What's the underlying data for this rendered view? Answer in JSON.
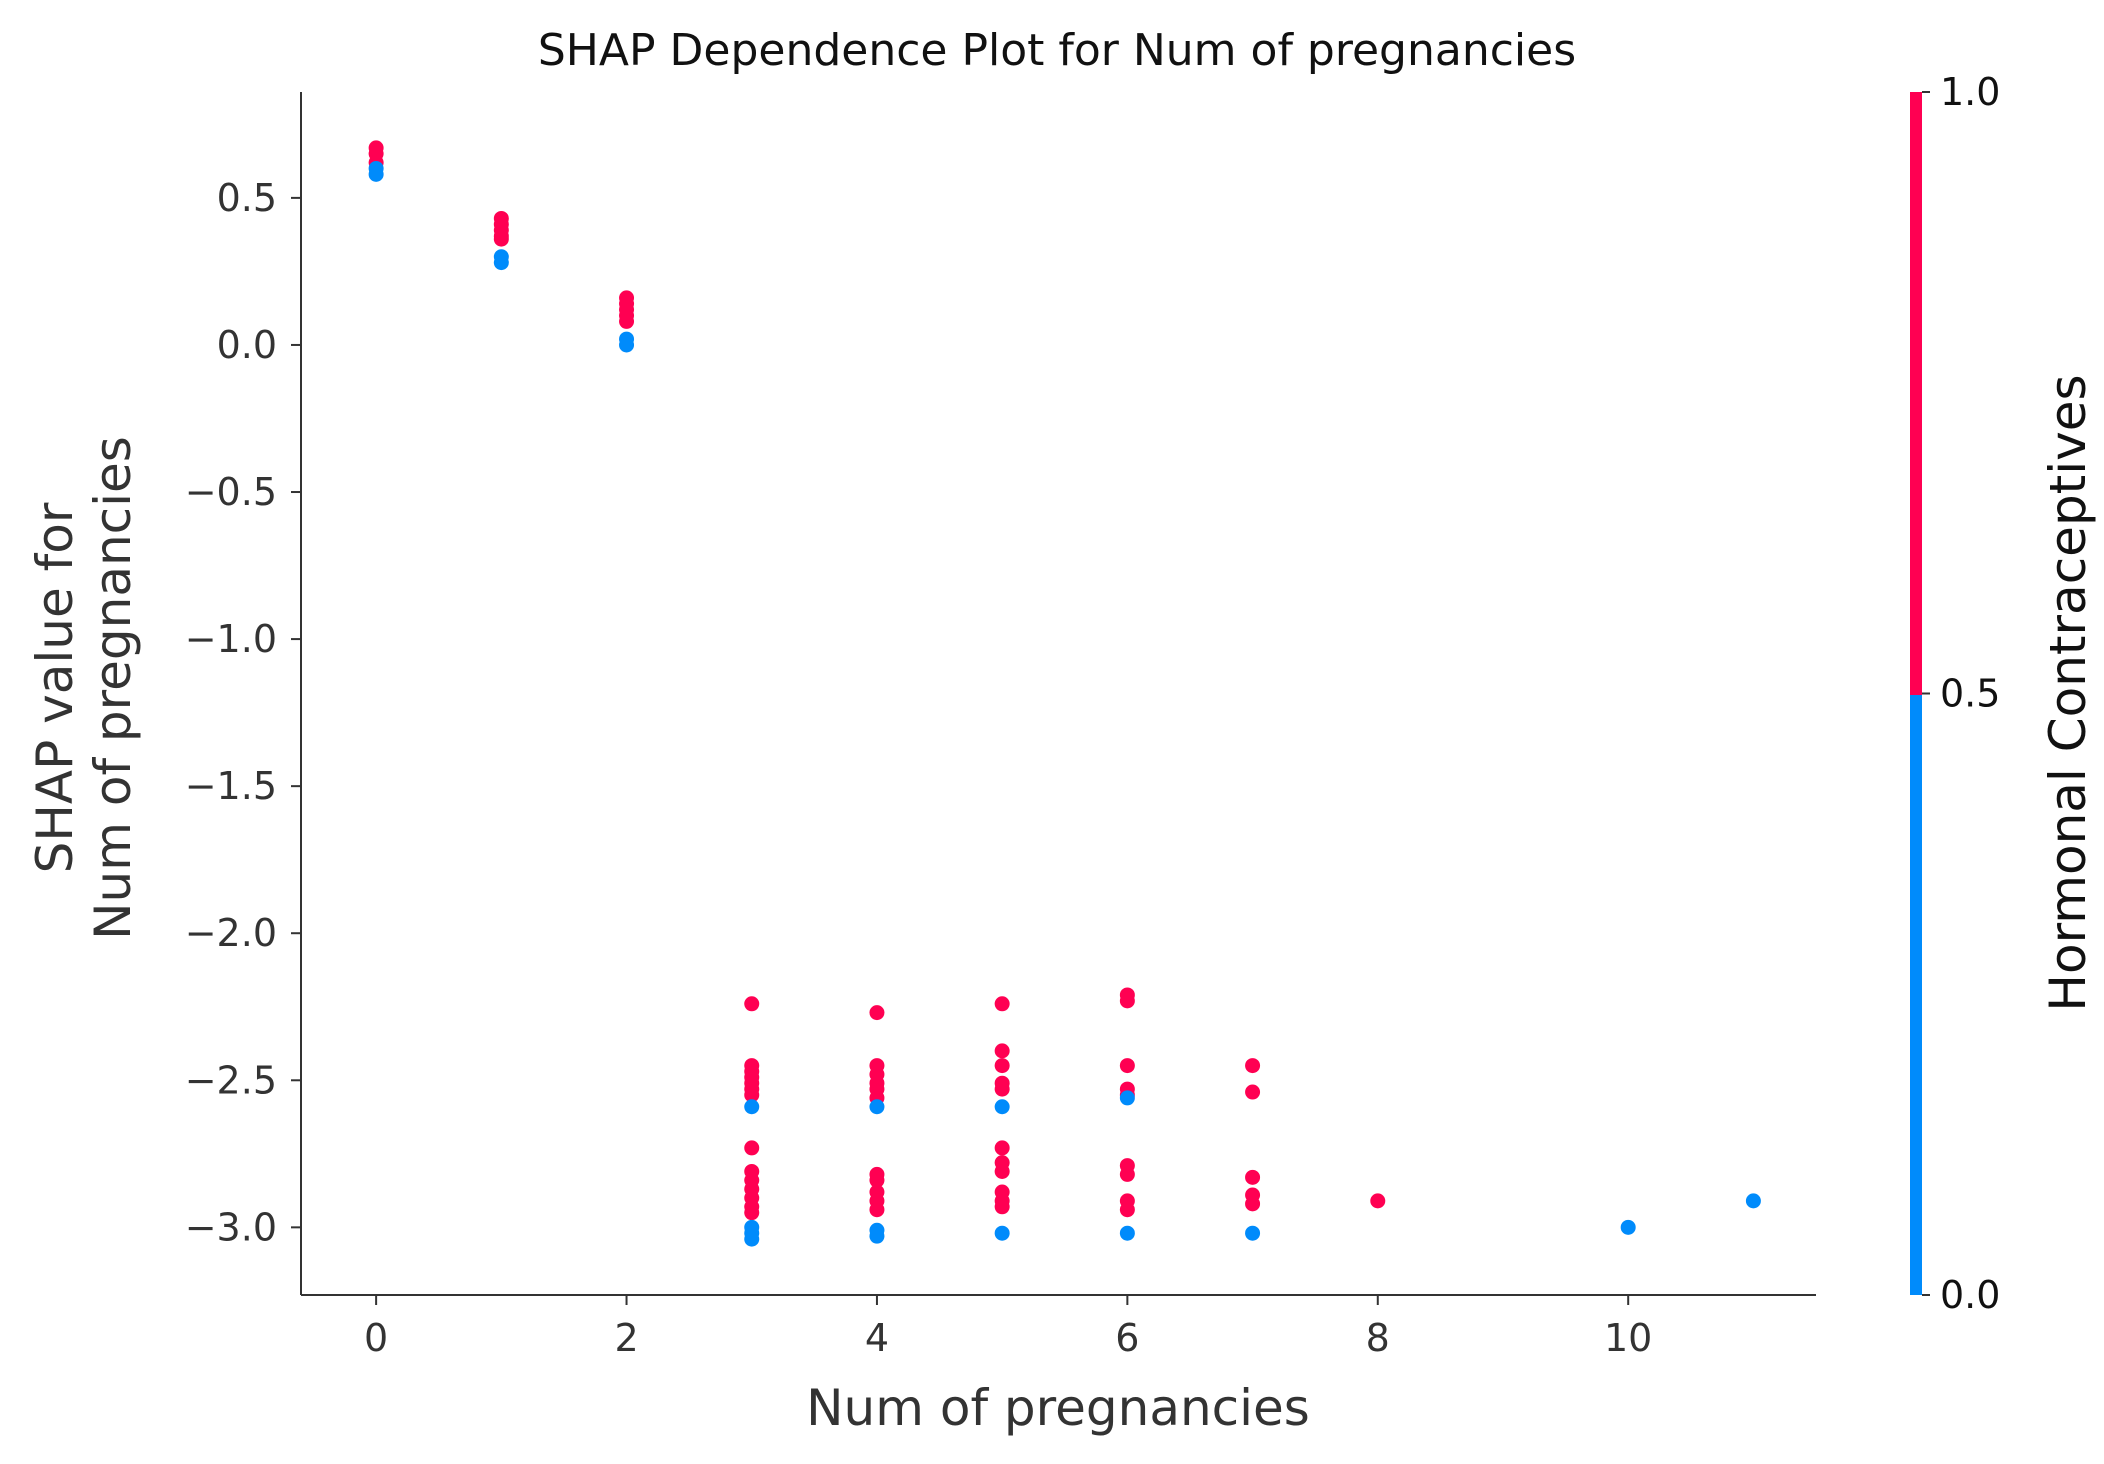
{
  "chart_data": {
    "type": "scatter",
    "title": "SHAP Dependence Plot for Num of pregnancies",
    "xlabel": "Num of pregnancies",
    "ylabel_lines": [
      "SHAP value for",
      "Num of pregnancies"
    ],
    "xlim": [
      -0.6,
      11.5
    ],
    "ylim": [
      -3.23,
      0.86
    ],
    "xticks": [
      0,
      2,
      4,
      6,
      8,
      10
    ],
    "xtick_labels": [
      "0",
      "2",
      "4",
      "6",
      "8",
      "10"
    ],
    "yticks": [
      0.5,
      0.0,
      -0.5,
      -1.0,
      -1.5,
      -2.0,
      -2.5,
      -3.0
    ],
    "ytick_labels": [
      "0.5",
      "0.0",
      "−0.5",
      "−1.0",
      "−1.5",
      "−2.0",
      "−2.5",
      "−3.0"
    ],
    "grid": false,
    "colorbar": {
      "label": "Hormonal Contraceptives",
      "range": [
        0,
        1
      ],
      "ticks": [
        0.0,
        0.5,
        1.0
      ],
      "tick_labels": [
        "0.0",
        "0.5",
        "1.0"
      ],
      "low_color": "#008bfb",
      "high_color": "#ff0052"
    },
    "series": [
      {
        "color_value": 1,
        "color": "#ff0052",
        "points": [
          [
            0,
            0.67
          ],
          [
            0,
            0.65
          ],
          [
            0,
            0.62
          ],
          [
            1,
            0.43
          ],
          [
            1,
            0.41
          ],
          [
            1,
            0.39
          ],
          [
            1,
            0.37
          ],
          [
            1,
            0.36
          ],
          [
            2,
            0.16
          ],
          [
            2,
            0.14
          ],
          [
            2,
            0.12
          ],
          [
            2,
            0.1
          ],
          [
            2,
            0.08
          ],
          [
            3,
            -2.24
          ],
          [
            3,
            -2.45
          ],
          [
            3,
            -2.47
          ],
          [
            3,
            -2.49
          ],
          [
            3,
            -2.51
          ],
          [
            3,
            -2.53
          ],
          [
            3,
            -2.55
          ],
          [
            3,
            -2.73
          ],
          [
            3,
            -2.81
          ],
          [
            3,
            -2.84
          ],
          [
            3,
            -2.87
          ],
          [
            3,
            -2.9
          ],
          [
            3,
            -2.93
          ],
          [
            3,
            -2.95
          ],
          [
            4,
            -2.27
          ],
          [
            4,
            -2.45
          ],
          [
            4,
            -2.48
          ],
          [
            4,
            -2.51
          ],
          [
            4,
            -2.53
          ],
          [
            4,
            -2.56
          ],
          [
            4,
            -2.82
          ],
          [
            4,
            -2.84
          ],
          [
            4,
            -2.88
          ],
          [
            4,
            -2.91
          ],
          [
            4,
            -2.94
          ],
          [
            5,
            -2.24
          ],
          [
            5,
            -2.4
          ],
          [
            5,
            -2.45
          ],
          [
            5,
            -2.51
          ],
          [
            5,
            -2.53
          ],
          [
            5,
            -2.73
          ],
          [
            5,
            -2.78
          ],
          [
            5,
            -2.81
          ],
          [
            5,
            -2.88
          ],
          [
            5,
            -2.91
          ],
          [
            5,
            -2.93
          ],
          [
            6,
            -2.21
          ],
          [
            6,
            -2.23
          ],
          [
            6,
            -2.45
          ],
          [
            6,
            -2.53
          ],
          [
            6,
            -2.55
          ],
          [
            6,
            -2.79
          ],
          [
            6,
            -2.82
          ],
          [
            6,
            -2.91
          ],
          [
            6,
            -2.94
          ],
          [
            7,
            -2.45
          ],
          [
            7,
            -2.54
          ],
          [
            7,
            -2.83
          ],
          [
            7,
            -2.89
          ],
          [
            7,
            -2.92
          ],
          [
            8,
            -2.91
          ]
        ]
      },
      {
        "color_value": 0,
        "color": "#008bfb",
        "points": [
          [
            0,
            0.6
          ],
          [
            0,
            0.58
          ],
          [
            1,
            0.3
          ],
          [
            1,
            0.28
          ],
          [
            2,
            0.02
          ],
          [
            2,
            0.0
          ],
          [
            3,
            -2.59
          ],
          [
            3,
            -3.0
          ],
          [
            3,
            -3.02
          ],
          [
            3,
            -3.04
          ],
          [
            4,
            -2.59
          ],
          [
            4,
            -3.01
          ],
          [
            4,
            -3.03
          ],
          [
            5,
            -2.59
          ],
          [
            5,
            -3.02
          ],
          [
            6,
            -2.56
          ],
          [
            6,
            -3.02
          ],
          [
            7,
            -3.02
          ],
          [
            10,
            -3.0
          ],
          [
            11,
            -2.91
          ]
        ]
      }
    ]
  }
}
